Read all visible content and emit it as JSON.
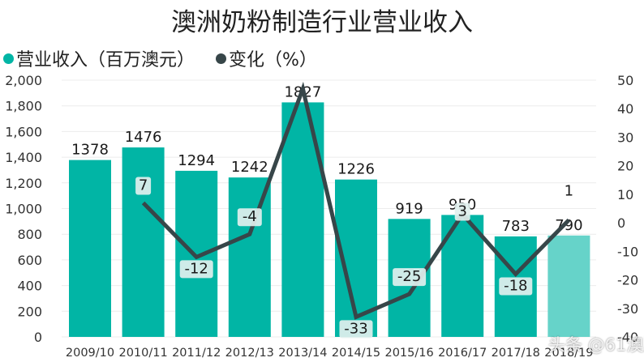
{
  "chart_data": {
    "type": "bar+line",
    "title": "澳洲奶粉制造行业营业收入",
    "categories": [
      "2009/10",
      "2010/11",
      "2011/12",
      "2012/13",
      "2013/14",
      "2014/15",
      "2015/16",
      "2016/17",
      "2017/18",
      "2018/19"
    ],
    "series": [
      {
        "name": "营业收入（百万澳元）",
        "type": "bar",
        "axis": "left",
        "color": "#01B5A5",
        "highlight_color": "#66D3C9",
        "values": [
          1378,
          1476,
          1294,
          1242,
          1827,
          1226,
          919,
          950,
          783,
          790
        ]
      },
      {
        "name": "变化（%）",
        "type": "line",
        "axis": "right",
        "color": "#374649",
        "values": [
          null,
          7,
          -12,
          -4,
          47,
          -33,
          -25,
          3,
          -18,
          1
        ],
        "labels_shown": [
          null,
          "7",
          "-12",
          "-4",
          null,
          "-33",
          "-25",
          "3",
          "-18",
          "1"
        ]
      }
    ],
    "left_axis": {
      "ylim": [
        0,
        2000
      ],
      "ticks": [
        "2,000",
        "1,800",
        "1,600",
        "1,400",
        "1,200",
        "1,000",
        "800",
        "600",
        "400",
        "200",
        "0"
      ]
    },
    "right_axis": {
      "ylim": [
        -40,
        50
      ],
      "ticks": [
        "50",
        "40",
        "30",
        "20",
        "10",
        "0",
        "-10",
        "-20",
        "-30",
        "-40"
      ]
    },
    "legend_position": "top-left",
    "grid": true
  },
  "title": "澳洲奶粉制造行业营业收入",
  "legend": [
    {
      "label": "营业收入（百万澳元）",
      "color": "#01B5A5"
    },
    {
      "label": "变化（%）",
      "color": "#374649"
    }
  ],
  "watermark": "头条 @61澳股资讯"
}
